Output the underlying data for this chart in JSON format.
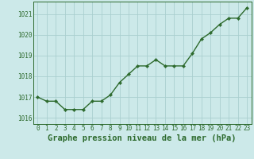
{
  "x": [
    0,
    1,
    2,
    3,
    4,
    5,
    6,
    7,
    8,
    9,
    10,
    11,
    12,
    13,
    14,
    15,
    16,
    17,
    18,
    19,
    20,
    21,
    22,
    23
  ],
  "y": [
    1017.0,
    1016.8,
    1016.8,
    1016.4,
    1016.4,
    1016.4,
    1016.8,
    1016.8,
    1017.1,
    1017.7,
    1018.1,
    1018.5,
    1018.5,
    1018.8,
    1018.5,
    1018.5,
    1018.5,
    1019.1,
    1019.8,
    1020.1,
    1020.5,
    1020.8,
    1020.8,
    1021.3
  ],
  "line_color": "#2d6a2d",
  "marker_color": "#2d6a2d",
  "bg_color": "#cce9e9",
  "grid_color": "#aacfcf",
  "xlabel": "Graphe pression niveau de la mer (hPa)",
  "ylim": [
    1015.7,
    1021.6
  ],
  "yticks": [
    1016,
    1017,
    1018,
    1019,
    1020,
    1021
  ],
  "xticks": [
    0,
    1,
    2,
    3,
    4,
    5,
    6,
    7,
    8,
    9,
    10,
    11,
    12,
    13,
    14,
    15,
    16,
    17,
    18,
    19,
    20,
    21,
    22,
    23
  ],
  "tick_fontsize": 5.5,
  "xlabel_fontsize": 7.5,
  "marker_size": 2.2,
  "line_width": 1.0
}
